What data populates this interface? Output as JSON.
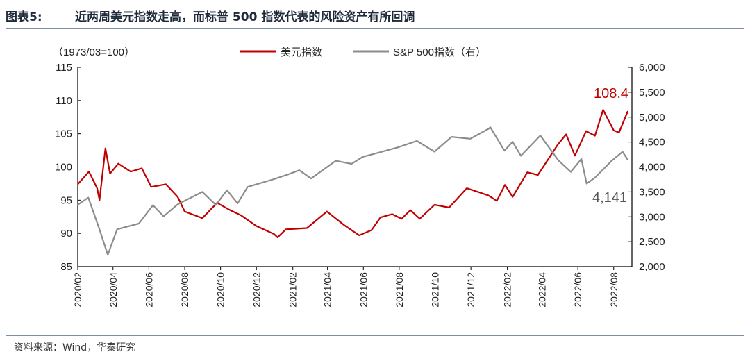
{
  "header": {
    "figure_label": "图表5:",
    "title": "近两周美元指数走高，而标普 500 指数代表的风险资产有所回调"
  },
  "footer": {
    "source": "资料来源：Wind，华泰研究"
  },
  "chart_data": {
    "type": "line",
    "title": "近两周美元指数走高，而标普 500 指数代表的风险资产有所回调",
    "left_axis_note": "（1973/03=100）",
    "x_categories": [
      "2020/02",
      "2020/04",
      "2020/06",
      "2020/08",
      "2020/10",
      "2020/12",
      "2021/02",
      "2021/04",
      "2021/06",
      "2021/08",
      "2021/10",
      "2021/12",
      "2022/02",
      "2022/04",
      "2022/06",
      "2022/08"
    ],
    "left_axis": {
      "min": 85,
      "max": 115,
      "ticks": [
        85,
        90,
        95,
        100,
        105,
        110,
        115
      ]
    },
    "right_axis": {
      "min": 2000,
      "max": 6000,
      "ticks": [
        "2,000",
        "2,500",
        "3,000",
        "3,500",
        "4,000",
        "4,500",
        "5,000",
        "5,500",
        "6,000"
      ]
    },
    "grid": false,
    "legend_position": "top-center",
    "series": [
      {
        "name": "美元指数",
        "axis": "left",
        "color": "#c00000",
        "end_label": "108.4",
        "points": [
          [
            "2020-02-01",
            97.4
          ],
          [
            "2020-02-20",
            99.3
          ],
          [
            "2020-03-05",
            96.8
          ],
          [
            "2020-03-09",
            95.0
          ],
          [
            "2020-03-19",
            102.8
          ],
          [
            "2020-03-27",
            99.0
          ],
          [
            "2020-04-10",
            100.5
          ],
          [
            "2020-05-01",
            99.3
          ],
          [
            "2020-05-20",
            99.8
          ],
          [
            "2020-06-05",
            97.0
          ],
          [
            "2020-06-30",
            97.4
          ],
          [
            "2020-07-20",
            95.5
          ],
          [
            "2020-08-01",
            93.3
          ],
          [
            "2020-08-31",
            92.3
          ],
          [
            "2020-09-25",
            94.6
          ],
          [
            "2020-10-15",
            93.6
          ],
          [
            "2020-11-05",
            92.7
          ],
          [
            "2020-12-01",
            91.1
          ],
          [
            "2020-12-31",
            89.9
          ],
          [
            "2021-01-06",
            89.4
          ],
          [
            "2021-01-20",
            90.6
          ],
          [
            "2021-02-25",
            90.8
          ],
          [
            "2021-03-31",
            93.3
          ],
          [
            "2021-04-30",
            91.2
          ],
          [
            "2021-05-25",
            89.7
          ],
          [
            "2021-06-15",
            90.5
          ],
          [
            "2021-06-30",
            92.4
          ],
          [
            "2021-07-20",
            92.9
          ],
          [
            "2021-08-05",
            92.2
          ],
          [
            "2021-08-20",
            93.5
          ],
          [
            "2021-09-05",
            92.2
          ],
          [
            "2021-09-30",
            94.3
          ],
          [
            "2021-10-25",
            93.9
          ],
          [
            "2021-11-24",
            96.8
          ],
          [
            "2021-12-31",
            95.7
          ],
          [
            "2022-01-14",
            94.9
          ],
          [
            "2022-01-28",
            97.3
          ],
          [
            "2022-02-10",
            95.5
          ],
          [
            "2022-03-07",
            99.2
          ],
          [
            "2022-03-25",
            98.8
          ],
          [
            "2022-04-28",
            103.4
          ],
          [
            "2022-05-12",
            104.9
          ],
          [
            "2022-05-27",
            101.7
          ],
          [
            "2022-06-15",
            105.4
          ],
          [
            "2022-06-30",
            104.7
          ],
          [
            "2022-07-14",
            108.6
          ],
          [
            "2022-08-01",
            105.5
          ],
          [
            "2022-08-10",
            105.2
          ],
          [
            "2022-08-25",
            108.4
          ]
        ]
      },
      {
        "name": "S&P 500指数（右）",
        "axis": "right",
        "color": "#8c8c8c",
        "end_label": "4,141",
        "points": [
          [
            "2020-02-01",
            3240
          ],
          [
            "2020-02-19",
            3386
          ],
          [
            "2020-03-09",
            2746
          ],
          [
            "2020-03-23",
            2237
          ],
          [
            "2020-04-08",
            2750
          ],
          [
            "2020-05-15",
            2864
          ],
          [
            "2020-06-08",
            3232
          ],
          [
            "2020-06-26",
            3009
          ],
          [
            "2020-07-20",
            3250
          ],
          [
            "2020-08-31",
            3500
          ],
          [
            "2020-09-23",
            3237
          ],
          [
            "2020-10-12",
            3534
          ],
          [
            "2020-10-30",
            3270
          ],
          [
            "2020-11-16",
            3600
          ],
          [
            "2020-12-31",
            3756
          ],
          [
            "2021-01-25",
            3855
          ],
          [
            "2021-02-12",
            3934
          ],
          [
            "2021-03-04",
            3768
          ],
          [
            "2021-04-15",
            4124
          ],
          [
            "2021-05-12",
            4063
          ],
          [
            "2021-05-31",
            4204
          ],
          [
            "2021-06-30",
            4297
          ],
          [
            "2021-07-30",
            4395
          ],
          [
            "2021-08-31",
            4522
          ],
          [
            "2021-09-30",
            4307
          ],
          [
            "2021-10-29",
            4605
          ],
          [
            "2021-11-30",
            4567
          ],
          [
            "2021-12-31",
            4766
          ],
          [
            "2022-01-03",
            4797
          ],
          [
            "2022-01-27",
            4326
          ],
          [
            "2022-02-10",
            4504
          ],
          [
            "2022-02-24",
            4225
          ],
          [
            "2022-03-29",
            4631
          ],
          [
            "2022-04-29",
            4131
          ],
          [
            "2022-05-20",
            3901
          ],
          [
            "2022-06-07",
            4160
          ],
          [
            "2022-06-16",
            3666
          ],
          [
            "2022-06-30",
            3785
          ],
          [
            "2022-07-29",
            4130
          ],
          [
            "2022-08-16",
            4305
          ],
          [
            "2022-08-25",
            4141
          ]
        ]
      }
    ]
  }
}
